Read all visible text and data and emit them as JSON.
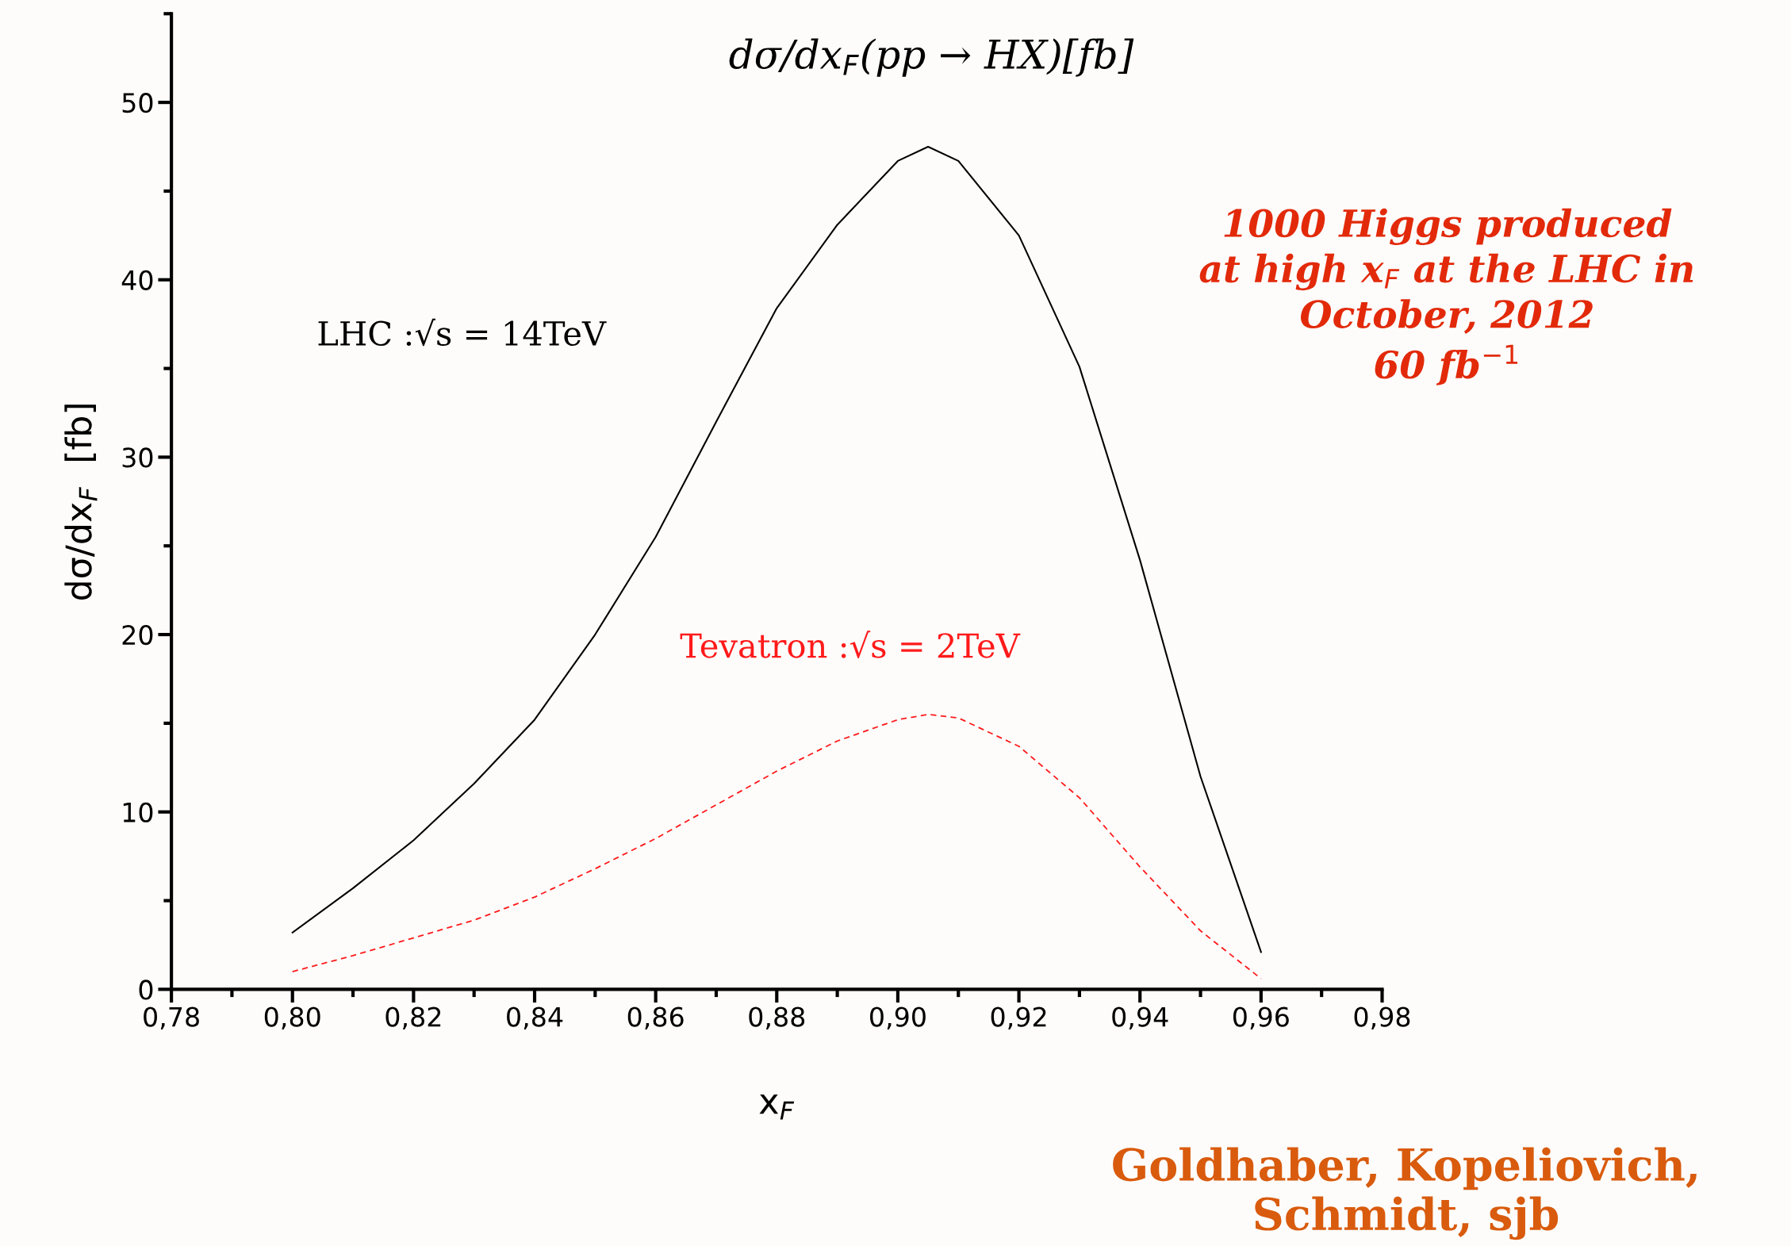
{
  "chart_data": {
    "type": "line",
    "title": "dσ/dx$_{F}$(pp → HX)[fb]",
    "xlabel": "x$_{F}$",
    "ylabel": "dσ/dx$_{F}$  [fb]",
    "x": [
      0.8,
      0.81,
      0.82,
      0.83,
      0.84,
      0.85,
      0.86,
      0.87,
      0.88,
      0.89,
      0.9,
      0.905,
      0.91,
      0.92,
      0.93,
      0.94,
      0.95,
      0.96
    ],
    "series": [
      {
        "name": "LHC :√s = 14TeV",
        "color": "#000000",
        "line_style": "solid",
        "values": [
          3.2,
          5.7,
          8.4,
          11.6,
          15.2,
          20.0,
          25.5,
          32.0,
          38.4,
          43.1,
          46.7,
          47.5,
          46.7,
          42.5,
          35.1,
          24.2,
          12.0,
          2.1
        ]
      },
      {
        "name": "Tevatron :√s = 2TeV",
        "color": "#ff1a1a",
        "line_style": "dashed",
        "values": [
          1.0,
          1.9,
          2.9,
          3.9,
          5.2,
          6.8,
          8.5,
          10.4,
          12.3,
          14.0,
          15.2,
          15.5,
          15.3,
          13.7,
          10.8,
          6.9,
          3.3,
          0.6
        ]
      }
    ],
    "xlim": [
      0.78,
      0.98
    ],
    "ylim": [
      0,
      55
    ],
    "xticks": [
      {
        "value": 0.78,
        "label": "0,78"
      },
      {
        "value": 0.8,
        "label": "0,80"
      },
      {
        "value": 0.82,
        "label": "0,82"
      },
      {
        "value": 0.84,
        "label": "0,84"
      },
      {
        "value": 0.86,
        "label": "0,86"
      },
      {
        "value": 0.88,
        "label": "0,88"
      },
      {
        "value": 0.9,
        "label": "0,90"
      },
      {
        "value": 0.92,
        "label": "0,92"
      },
      {
        "value": 0.94,
        "label": "0,94"
      },
      {
        "value": 0.96,
        "label": "0,96"
      },
      {
        "value": 0.98,
        "label": "0,98"
      }
    ],
    "yticks": [
      0,
      10,
      20,
      30,
      40,
      50
    ],
    "grid": false,
    "legend": false,
    "marker": "none",
    "annotations": [
      "1000 Higgs produced\nat high x$_{F}$ at the LHC in\nOctober, 2012\n60 fb$^{−1}$",
      "Goldhaber, Kopeliovich,\nSchmidt, sjb"
    ]
  }
}
